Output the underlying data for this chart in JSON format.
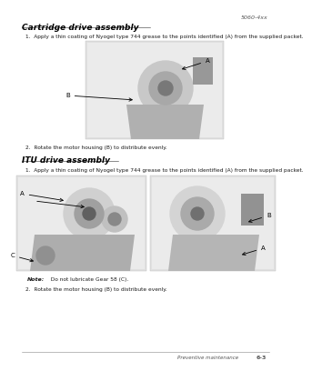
{
  "page_number": "5060-4xx",
  "section1_title": "Cartridge drive assembly",
  "section1_step1": "1.  Apply a thin coating of Nyogel type 744 grease to the points identified (A) from the supplied packet.",
  "section1_step2": "2.  Rotate the motor housing (B) to distribute evenly.",
  "section2_title": "ITU drive assembly",
  "section2_step1": "1.  Apply a thin coating of Nyogel type 744 grease to the points identified (A) from the supplied packet.",
  "section2_note_bold": "Note:",
  "section2_note_rest": "  Do not lubricate Gear 58 (C).",
  "section2_step2": "2.  Rotate the motor housing (B) to distribute evenly.",
  "footer_left": "Preventive maintenance",
  "footer_right": "6-3",
  "bg_color": "#ffffff",
  "text_color": "#1a1a1a",
  "image_bg": "#e0e0e0",
  "image_border": "#bbbbbb",
  "page_num_color": "#555555",
  "title_color": "#000000",
  "footer_color": "#555555"
}
